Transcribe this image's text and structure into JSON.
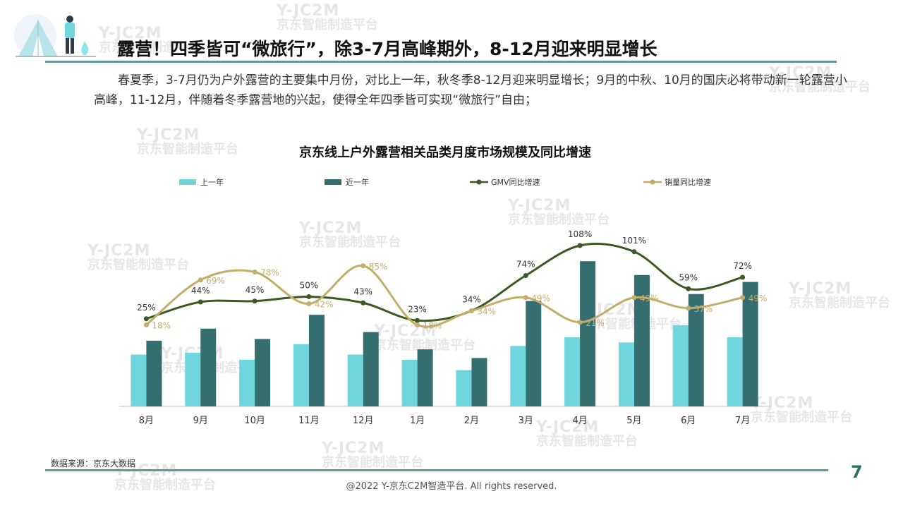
{
  "header": {
    "title": "露营！四季皆可“微旅行”，除3-7月高峰期外，8-12月迎来明显增长"
  },
  "intro": {
    "text": "春夏季，3-7月仍为户外露营的主要集中月份，对比上一年，秋冬季8-12月迎来明显增长；9月的中秋、10月的国庆必将带动新一轮露营小高峰，11-12月，伴随着冬季露营地的兴起，使得全年四季皆可实现“微旅行”自由；"
  },
  "watermark": {
    "line1": "Y-JC2M",
    "line2": "京东智能制造平台"
  },
  "chart_data": {
    "type": "bar",
    "title": "京东线上户外露营相关品类月度市场规模及同比增速",
    "categories": [
      "8月",
      "9月",
      "10月",
      "11月",
      "12月",
      "1月",
      "2月",
      "3月",
      "4月",
      "5月",
      "6月",
      "7月"
    ],
    "legend_position": "top",
    "grid": false,
    "series": [
      {
        "name": "上一年",
        "kind": "bar",
        "color": "#6fd6e0",
        "values": [
          30,
          31,
          27,
          36,
          30,
          27,
          21,
          35,
          40,
          37,
          47,
          40
        ]
      },
      {
        "name": "近一年",
        "kind": "bar",
        "color": "#346e6e",
        "values": [
          38,
          45,
          39,
          53,
          43,
          33,
          28,
          61,
          84,
          76,
          65,
          72
        ]
      },
      {
        "name": "GMV同比增速",
        "kind": "line",
        "color": "#3a5a22",
        "values": [
          25,
          44,
          45,
          50,
          43,
          23,
          34,
          74,
          108,
          101,
          59,
          72
        ],
        "labels": [
          "25%",
          "44%",
          "45%",
          "50%",
          "43%",
          "23%",
          "34%",
          "74%",
          "108%",
          "101%",
          "59%",
          "72%"
        ]
      },
      {
        "name": "销量同比增速",
        "kind": "line",
        "color": "#c4ad6a",
        "values": [
          18,
          69,
          78,
          42,
          85,
          18,
          34,
          49,
          21,
          49,
          37,
          49
        ],
        "labels": [
          "18%",
          "69%",
          "78%",
          "42%",
          "85%",
          "18%",
          "34%",
          "49%",
          "21%",
          "49%",
          "37%",
          "49%"
        ]
      }
    ]
  },
  "source": {
    "text": "数据来源：京东大数据"
  },
  "footer": {
    "page_number": "7",
    "copyright": "@2022 Y-京东C2M智造平台. All rights reserved."
  }
}
